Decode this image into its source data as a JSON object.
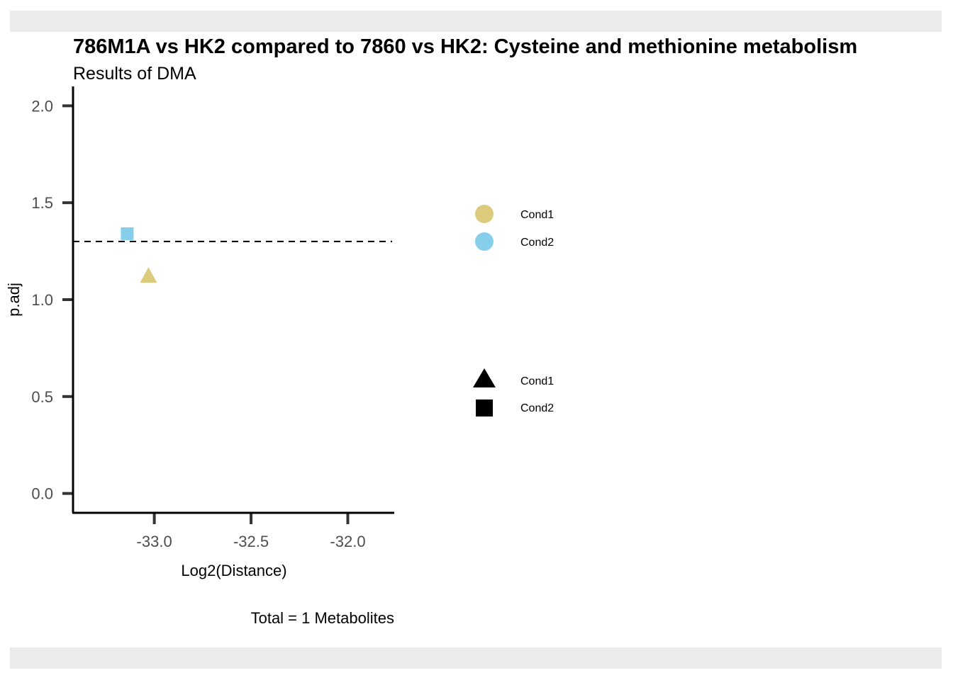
{
  "chart_data": {
    "type": "scatter",
    "title": "786M1A vs HK2 compared to 7860 vs HK2: Cysteine and methionine metabolism",
    "subtitle": "Results of DMA",
    "xlabel": "Log2(Distance)",
    "ylabel": "p.adj",
    "caption": "Total = 1 Metabolites",
    "xlim": [
      -33.42,
      -31.76
    ],
    "ylim": [
      -0.1,
      2.1
    ],
    "xticks": [
      -33.0,
      -32.5,
      -32.0
    ],
    "xtick_labels": [
      "-33.0",
      "-32.5",
      "-32.0"
    ],
    "yticks": [
      0.0,
      0.5,
      1.0,
      1.5,
      2.0
    ],
    "ytick_labels": [
      "0.0",
      "0.5",
      "1.0",
      "1.5",
      "2.0"
    ],
    "hline": {
      "y": 1.3,
      "style": "dashed"
    },
    "grid": false,
    "series": [
      {
        "name": "Cond1",
        "color": "#dccb7c",
        "shape": "triangle",
        "points": [
          {
            "x": -33.03,
            "y": 1.12
          }
        ]
      },
      {
        "name": "Cond2",
        "color": "#87ceeb",
        "shape": "square",
        "points": [
          {
            "x": -33.14,
            "y": 1.34
          }
        ]
      }
    ],
    "legend": {
      "placement": "right",
      "color_entries": [
        {
          "label": "Cond1",
          "color": "#dccb7c"
        },
        {
          "label": "Cond2",
          "color": "#87ceeb"
        }
      ],
      "shape_entries": [
        {
          "label": "Cond1",
          "shape": "triangle"
        },
        {
          "label": "Cond2",
          "shape": "square"
        }
      ]
    }
  }
}
